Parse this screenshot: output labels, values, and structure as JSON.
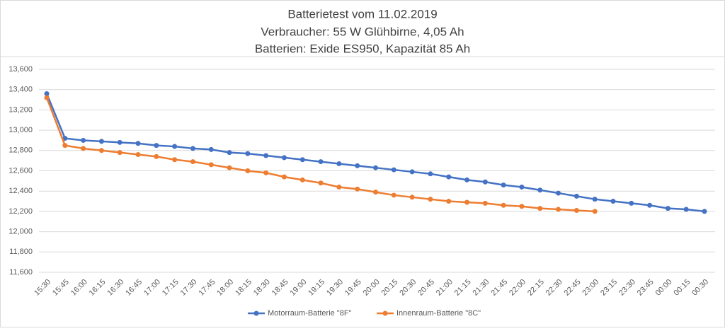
{
  "chart_data": {
    "type": "line",
    "title": "Batterietest vom 11.02.2019",
    "subtitle": [
      "Verbraucher: 55 W Glühbirne, 4,05 Ah",
      "Batterien: Exide ES950, Kapazität 85 Ah"
    ],
    "categories": [
      "15:30",
      "15:45",
      "16:00",
      "16:15",
      "16:30",
      "16:45",
      "17:00",
      "17:15",
      "17:30",
      "17:45",
      "18:00",
      "18:15",
      "18:30",
      "18:45",
      "19:00",
      "19:15",
      "19:30",
      "19:45",
      "20:00",
      "20:15",
      "20:30",
      "20:45",
      "21:00",
      "21:15",
      "21:30",
      "21:45",
      "22:00",
      "22:15",
      "22:30",
      "22:45",
      "23:00",
      "23:15",
      "23:30",
      "23:45",
      "00:00",
      "00:15",
      "00:30"
    ],
    "series": [
      {
        "name": "Motorraum-Batterie \"8F\"",
        "color": "#4472c4",
        "values": [
          13.36,
          12.92,
          12.9,
          12.89,
          12.88,
          12.87,
          12.85,
          12.84,
          12.82,
          12.81,
          12.78,
          12.77,
          12.75,
          12.73,
          12.71,
          12.69,
          12.67,
          12.65,
          12.63,
          12.61,
          12.59,
          12.57,
          12.54,
          12.51,
          12.49,
          12.46,
          12.44,
          12.41,
          12.38,
          12.35,
          12.32,
          12.3,
          12.28,
          12.26,
          12.23,
          12.22,
          12.2
        ]
      },
      {
        "name": "Innenraum-Batterie \"8C\"",
        "color": "#ed7d31",
        "values": [
          13.32,
          12.85,
          12.82,
          12.8,
          12.78,
          12.76,
          12.74,
          12.71,
          12.69,
          12.66,
          12.63,
          12.6,
          12.58,
          12.54,
          12.51,
          12.48,
          12.44,
          12.42,
          12.39,
          12.36,
          12.34,
          12.32,
          12.3,
          12.29,
          12.28,
          12.26,
          12.25,
          12.23,
          12.22,
          12.21,
          12.2,
          null,
          null,
          null,
          null,
          null,
          null
        ]
      }
    ],
    "ylim": [
      11.6,
      13.6
    ],
    "yticks": [
      {
        "value": 11.6,
        "label": "11,600"
      },
      {
        "value": 11.8,
        "label": "11,800"
      },
      {
        "value": 12.0,
        "label": "12,000"
      },
      {
        "value": 12.2,
        "label": "12,200"
      },
      {
        "value": 12.4,
        "label": "12,400"
      },
      {
        "value": 12.6,
        "label": "12,600"
      },
      {
        "value": 12.8,
        "label": "12,800"
      },
      {
        "value": 13.0,
        "label": "13,000"
      },
      {
        "value": 13.2,
        "label": "13,200"
      },
      {
        "value": 13.4,
        "label": "13,400"
      },
      {
        "value": 13.6,
        "label": "13,600"
      }
    ],
    "grid": true,
    "legend": "bottom"
  }
}
